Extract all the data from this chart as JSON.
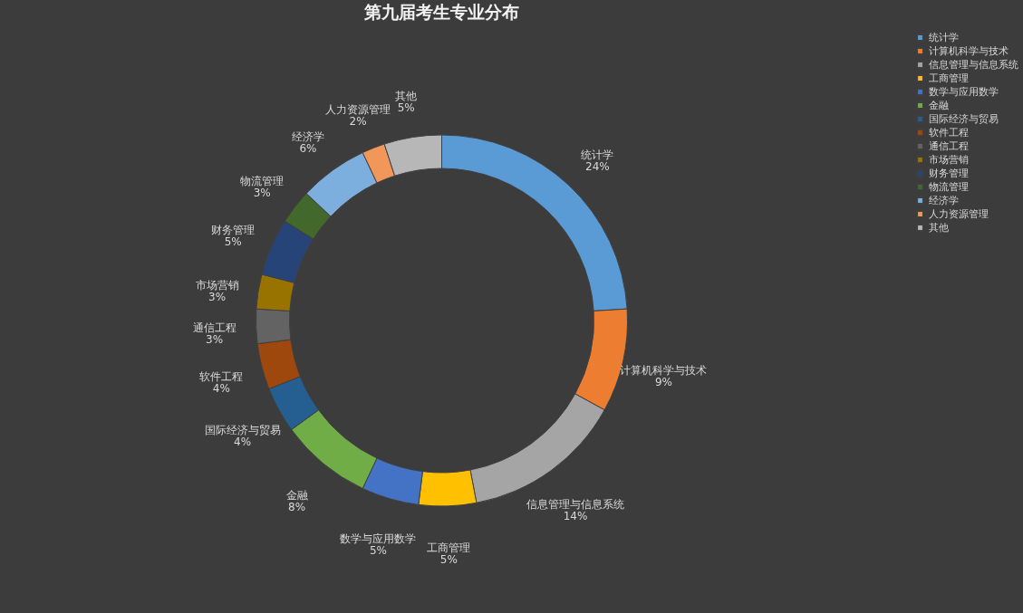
{
  "chart_data": {
    "type": "donut",
    "title": "第九届考生专业分布",
    "categories": [
      "统计学",
      "计算机科学与技术",
      "信息管理与信息系统",
      "工商管理",
      "数学与应用数学",
      "金融",
      "国际经济与贸易",
      "软件工程",
      "通信工程",
      "市场营销",
      "财务管理",
      "物流管理",
      "经济学",
      "人力资源管理",
      "其他"
    ],
    "values": [
      24,
      9,
      14,
      5,
      5,
      8,
      4,
      4,
      3,
      3,
      5,
      3,
      6,
      2,
      5
    ],
    "value_labels": [
      "24%",
      "9%",
      "14%",
      "5%",
      "5%",
      "8%",
      "4%",
      "4%",
      "3%",
      "3%",
      "5%",
      "3%",
      "6%",
      "2%",
      "5%"
    ],
    "colors": [
      "#5b9bd5",
      "#ed7d31",
      "#a5a5a5",
      "#ffc000",
      "#4472c4",
      "#70ad47",
      "#255e91",
      "#9e480e",
      "#636363",
      "#997300",
      "#264478",
      "#43682b",
      "#7cafdd",
      "#f1975a",
      "#b7b7b7"
    ],
    "legend": "right"
  }
}
